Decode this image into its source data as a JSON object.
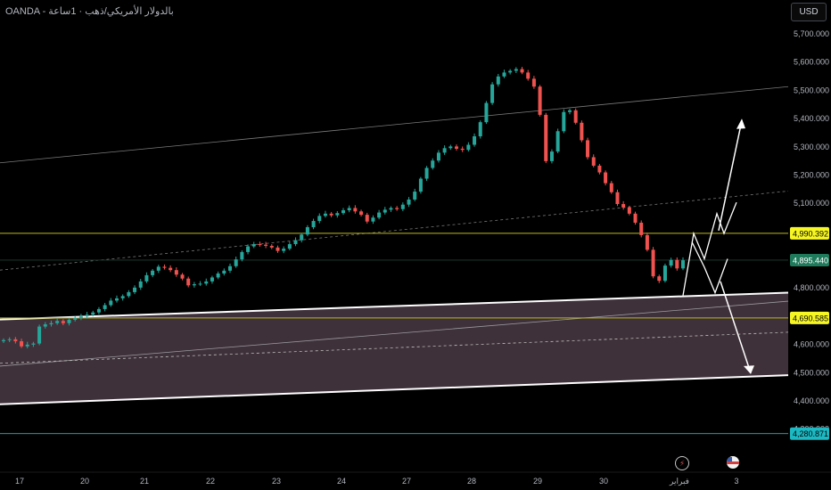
{
  "header": {
    "symbol_title": "OANDA - بالدولار الأمريكي/ذهب · 1ساعة"
  },
  "currency_button": {
    "label": "USD"
  },
  "icons": {
    "events": "lightning-icon",
    "country": "us-flag-icon"
  },
  "colors": {
    "background": "#000000",
    "up_candle": "#26a69a",
    "down_candle": "#ef5350",
    "zone_fill": "#4a3a44",
    "yellow_level": "#b8b81f",
    "last_price_bg": "#1f7a5c",
    "cyan_level": "#1db9c3"
  },
  "chart_data": {
    "type": "candlestick",
    "ylim": [
      4220,
      5760
    ],
    "yticks": [
      "5,700.000",
      "5,600.000",
      "5,500.000",
      "5,400.000",
      "5,300.000",
      "5,200.000",
      "5,100.000",
      "4,800.000",
      "4,600.000",
      "4,500.000",
      "4,400.000",
      "4,300.000"
    ],
    "xticks": [
      "17",
      "20",
      "21",
      "22",
      "23",
      "24",
      "27",
      "28",
      "29",
      "30",
      "فبراير",
      "3"
    ],
    "price_labels": [
      {
        "text": "4,990.392",
        "value": 4990.392,
        "style": "yellow"
      },
      {
        "text": "4,895.440",
        "value": 4895.44,
        "style": "last"
      },
      {
        "text": "4,690.585",
        "value": 4690.585,
        "style": "yellow"
      },
      {
        "text": "4,280.871",
        "value": 4280.871,
        "style": "cyan"
      }
    ],
    "series_close": [
      4612,
      4615,
      4608,
      4590,
      4596,
      4600,
      4660,
      4668,
      4672,
      4680,
      4672,
      4684,
      4690,
      4696,
      4702,
      4710,
      4722,
      4736,
      4752,
      4760,
      4768,
      4782,
      4798,
      4820,
      4842,
      4858,
      4872,
      4868,
      4860,
      4844,
      4830,
      4806,
      4810,
      4812,
      4820,
      4834,
      4848,
      4858,
      4874,
      4898,
      4924,
      4944,
      4952,
      4950,
      4946,
      4940,
      4928,
      4936,
      4952,
      4966,
      4986,
      5012,
      5034,
      5052,
      5060,
      5054,
      5062,
      5072,
      5080,
      5068,
      5056,
      5032,
      5046,
      5064,
      5074,
      5080,
      5076,
      5092,
      5110,
      5138,
      5184,
      5222,
      5248,
      5276,
      5292,
      5298,
      5290,
      5286,
      5304,
      5334,
      5384,
      5452,
      5518,
      5546,
      5560,
      5566,
      5572,
      5560,
      5538,
      5510,
      5410,
      5246,
      5280,
      5352,
      5420,
      5426,
      5382,
      5320,
      5260,
      5230,
      5206,
      5168,
      5136,
      5094,
      5082,
      5060,
      5028,
      4984,
      4932,
      4838,
      4822,
      4876,
      4896,
      4866,
      4895
    ]
  }
}
